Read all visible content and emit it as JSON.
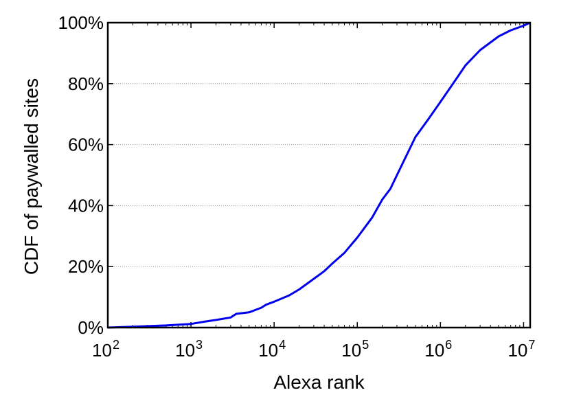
{
  "chart_data": {
    "type": "line",
    "title": "",
    "xlabel": "Alexa rank",
    "ylabel": "CDF of paywalled sites",
    "x_scale": "log",
    "xlim": [
      100,
      12000000
    ],
    "ylim": [
      0,
      100
    ],
    "x_ticks": [
      {
        "base": "10",
        "exp": "2"
      },
      {
        "base": "10",
        "exp": "3"
      },
      {
        "base": "10",
        "exp": "4"
      },
      {
        "base": "10",
        "exp": "5"
      },
      {
        "base": "10",
        "exp": "6"
      },
      {
        "base": "10",
        "exp": "7"
      }
    ],
    "y_ticks": [
      "0%",
      "20%",
      "40%",
      "60%",
      "80%",
      "100%"
    ],
    "grid": {
      "y": true,
      "x": false,
      "style": "dotted"
    },
    "series": [
      {
        "color": "#0000ee",
        "x": [
          100,
          200,
          500,
          1000,
          1500,
          2000,
          3000,
          3500,
          5000,
          7000,
          8000,
          10000,
          15000,
          20000,
          30000,
          40000,
          50000,
          70000,
          100000,
          150000,
          200000,
          250000,
          300000,
          400000,
          500000,
          700000,
          1000000,
          1500000,
          2000000,
          3000000,
          5000000,
          7000000,
          10000000,
          12000000
        ],
        "y": [
          0,
          0.3,
          0.7,
          1.2,
          2,
          2.5,
          3.3,
          4.5,
          5,
          6.5,
          7.5,
          8.5,
          10.5,
          12.5,
          16,
          18.5,
          21,
          24.5,
          29.5,
          36,
          42,
          45.5,
          50,
          57,
          62.5,
          68,
          74,
          81,
          86,
          91,
          95.5,
          97.5,
          99,
          100
        ]
      }
    ]
  }
}
